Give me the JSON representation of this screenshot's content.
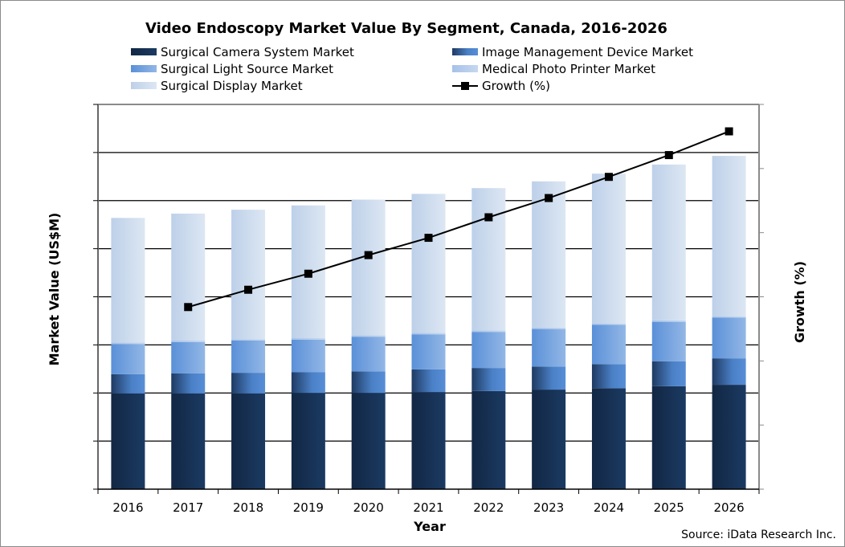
{
  "chart_data": {
    "type": "bar",
    "stacked": true,
    "title": "Video Endoscopy Market Value By Segment, Canada, 2016-2026",
    "xlabel": "Year",
    "ylabel": "Market Value (US$M)",
    "y2label": "Growth (%)",
    "ylim": [
      0,
      8
    ],
    "y2lim": [
      0,
      6
    ],
    "y_tick_labels_shown": false,
    "grid": true,
    "legend_position": "top",
    "source": "Source: iData Research Inc.",
    "categories": [
      "2016",
      "2017",
      "2018",
      "2019",
      "2020",
      "2021",
      "2022",
      "2023",
      "2024",
      "2025",
      "2026"
    ],
    "series": [
      {
        "name": "Surgical Camera System Market",
        "color": "#173459",
        "values": [
          1.99,
          1.99,
          1.99,
          2.0,
          2.0,
          2.02,
          2.04,
          2.07,
          2.1,
          2.14,
          2.17
        ]
      },
      {
        "name": "Image Management Device Market",
        "color": "#3f70b0",
        "values": [
          0.4,
          0.42,
          0.43,
          0.43,
          0.45,
          0.47,
          0.48,
          0.48,
          0.5,
          0.52,
          0.55
        ]
      },
      {
        "name": "Surgical Light Source Market",
        "color": "#74a2dc",
        "values": [
          0.63,
          0.65,
          0.67,
          0.68,
          0.72,
          0.73,
          0.75,
          0.78,
          0.82,
          0.82,
          0.85
        ]
      },
      {
        "name": "Medical Photo Printer Market",
        "color": "#b2c9e8",
        "values": [
          0.03,
          0.03,
          0.03,
          0.03,
          0.03,
          0.03,
          0.03,
          0.03,
          0.02,
          0.03,
          0.02
        ]
      },
      {
        "name": "Surgical Display Market",
        "color": "#d3e0f0",
        "values": [
          2.59,
          2.64,
          2.69,
          2.76,
          2.82,
          2.89,
          2.96,
          3.04,
          3.12,
          3.24,
          3.34
        ]
      }
    ],
    "line_series": {
      "name": "Growth (%)",
      "axis": "right",
      "color": "#000000",
      "values": [
        null,
        2.84,
        3.11,
        3.36,
        3.65,
        3.92,
        4.24,
        4.54,
        4.87,
        5.21,
        5.58
      ]
    }
  }
}
